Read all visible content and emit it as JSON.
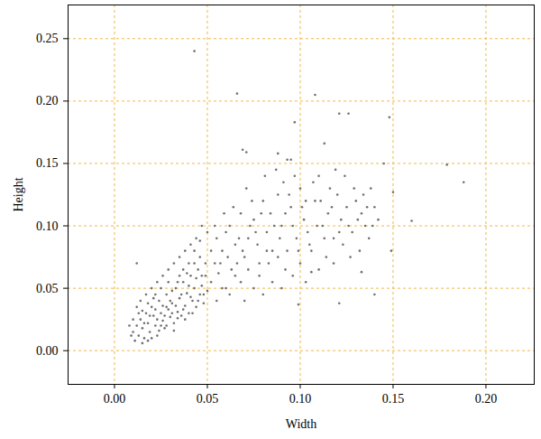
{
  "chart_data": {
    "type": "scatter",
    "x_label": "Width",
    "y_label": "Height",
    "color": "#707070",
    "grid": true,
    "marker": "circle",
    "xlim": [
      -0.025,
      0.226
    ],
    "ylim": [
      -0.027,
      0.277
    ],
    "xticks": [
      {
        "value": 0,
        "label": "0.00"
      },
      0.05,
      {
        "value": 0.1,
        "label": "0.10"
      },
      0.15,
      {
        "value": 0.2,
        "label": "0.20"
      }
    ],
    "yticks": [
      {
        "value": 0,
        "label": "0.00"
      },
      0.05,
      {
        "value": 0.1,
        "label": "0.10"
      },
      0.15,
      {
        "value": 0.2,
        "label": "0.20"
      },
      0.25
    ],
    "x": [
      0.01,
      0.012,
      0.013,
      0.014,
      0.015,
      0.016,
      0.017,
      0.018,
      0.019,
      0.02,
      0.021,
      0.022,
      0.023,
      0.024,
      0.025,
      0.026,
      0.027,
      0.028,
      0.029,
      0.03,
      0.031,
      0.032,
      0.033,
      0.034,
      0.035,
      0.036,
      0.037,
      0.038,
      0.039,
      0.04,
      0.041,
      0.042,
      0.043,
      0.044,
      0.045,
      0.046,
      0.047,
      0.048,
      0.049,
      0.05,
      0.011,
      0.013,
      0.015,
      0.016,
      0.018,
      0.019,
      0.02,
      0.021,
      0.022,
      0.023,
      0.024,
      0.025,
      0.026,
      0.027,
      0.028,
      0.029,
      0.03,
      0.031,
      0.032,
      0.033,
      0.034,
      0.035,
      0.036,
      0.037,
      0.038,
      0.039,
      0.04,
      0.041,
      0.042,
      0.043,
      0.044,
      0.045,
      0.046,
      0.047,
      0.048,
      0.009,
      0.012,
      0.014,
      0.017,
      0.02,
      0.023,
      0.026,
      0.029,
      0.032,
      0.035,
      0.038,
      0.041,
      0.044,
      0.047,
      0.05,
      0.008,
      0.01,
      0.015,
      0.018,
      0.022,
      0.025,
      0.028,
      0.031,
      0.034,
      0.037,
      0.04,
      0.043,
      0.046,
      0.049,
      0.052,
      0.054,
      0.056,
      0.058,
      0.06,
      0.055,
      0.06,
      0.062,
      0.065,
      0.068,
      0.07,
      0.072,
      0.075,
      0.078,
      0.08,
      0.082,
      0.085,
      0.088,
      0.09,
      0.092,
      0.095,
      0.098,
      0.1,
      0.102,
      0.105,
      0.108,
      0.11,
      0.112,
      0.115,
      0.118,
      0.12,
      0.122,
      0.125,
      0.128,
      0.13,
      0.133,
      0.135,
      0.138,
      0.14,
      0.142,
      0.055,
      0.058,
      0.062,
      0.065,
      0.068,
      0.07,
      0.072,
      0.075,
      0.078,
      0.08,
      0.083,
      0.085,
      0.088,
      0.09,
      0.093,
      0.096,
      0.1,
      0.103,
      0.106,
      0.11,
      0.114,
      0.118,
      0.123,
      0.127,
      0.132,
      0.137,
      0.052,
      0.057,
      0.061,
      0.064,
      0.067,
      0.071,
      0.074,
      0.077,
      0.081,
      0.084,
      0.087,
      0.091,
      0.094,
      0.097,
      0.101,
      0.104,
      0.107,
      0.111,
      0.116,
      0.119,
      0.124,
      0.129,
      0.134,
      0.139,
      0.054,
      0.059,
      0.063,
      0.066,
      0.069,
      0.073,
      0.076,
      0.079,
      0.082,
      0.086,
      0.089,
      0.092,
      0.096,
      0.099,
      0.103,
      0.109,
      0.113,
      0.117,
      0.121,
      0.126,
      0.131,
      0.136,
      0.043,
      0.066,
      0.108,
      0.121,
      0.126,
      0.097,
      0.148,
      0.113,
      0.179,
      0.188,
      0.145,
      0.15,
      0.16,
      0.149,
      0.133,
      0.106,
      0.099,
      0.121,
      0.14,
      0.012,
      0.069,
      0.071,
      0.088,
      0.093,
      0.095
    ],
    "values": [
      0.015,
      0.02,
      0.012,
      0.025,
      0.018,
      0.01,
      0.03,
      0.022,
      0.015,
      0.035,
      0.028,
      0.02,
      0.012,
      0.04,
      0.03,
      0.024,
      0.018,
      0.045,
      0.033,
      0.027,
      0.038,
      0.022,
      0.05,
      0.031,
      0.042,
      0.028,
      0.055,
      0.036,
      0.046,
      0.03,
      0.06,
      0.04,
      0.05,
      0.035,
      0.065,
      0.045,
      0.052,
      0.038,
      0.07,
      0.048,
      0.008,
      0.03,
      0.006,
      0.022,
      0.008,
      0.028,
      0.01,
      0.042,
      0.033,
      0.025,
      0.016,
      0.05,
      0.036,
      0.028,
      0.02,
      0.055,
      0.04,
      0.03,
      0.016,
      0.036,
      0.026,
      0.06,
      0.045,
      0.033,
      0.025,
      0.062,
      0.052,
      0.043,
      0.03,
      0.07,
      0.058,
      0.04,
      0.075,
      0.06,
      0.045,
      0.012,
      0.035,
      0.04,
      0.045,
      0.05,
      0.055,
      0.06,
      0.065,
      0.07,
      0.075,
      0.08,
      0.085,
      0.09,
      0.1,
      0.095,
      0.02,
      0.025,
      0.032,
      0.038,
      0.045,
      0.02,
      0.035,
      0.048,
      0.055,
      0.065,
      0.07,
      0.08,
      0.088,
      0.06,
      0.055,
      0.07,
      0.062,
      0.08,
      0.05,
      0.09,
      0.095,
      0.1,
      0.085,
      0.11,
      0.075,
      0.09,
      0.105,
      0.07,
      0.12,
      0.095,
      0.08,
      0.125,
      0.1,
      0.065,
      0.115,
      0.09,
      0.13,
      0.105,
      0.085,
      0.12,
      0.14,
      0.1,
      0.11,
      0.09,
      0.125,
      0.105,
      0.115,
      0.095,
      0.12,
      0.11,
      0.1,
      0.13,
      0.115,
      0.105,
      0.04,
      0.05,
      0.045,
      0.06,
      0.055,
      0.04,
      0.065,
      0.05,
      0.06,
      0.045,
      0.07,
      0.055,
      0.075,
      0.05,
      0.08,
      0.06,
      0.07,
      0.055,
      0.08,
      0.065,
      0.075,
      0.07,
      0.085,
      0.075,
      0.08,
      0.09,
      0.08,
      0.07,
      0.075,
      0.115,
      0.09,
      0.13,
      0.12,
      0.085,
      0.14,
      0.11,
      0.145,
      0.135,
      0.125,
      0.14,
      0.115,
      0.095,
      0.135,
      0.12,
      0.13,
      0.145,
      0.14,
      0.13,
      0.125,
      0.1,
      0.1,
      0.11,
      0.065,
      0.07,
      0.08,
      0.1,
      0.095,
      0.11,
      0.08,
      0.1,
      0.09,
      0.11,
      0.1,
      0.08,
      0.12,
      0.1,
      0.09,
      0.115,
      0.095,
      0.1,
      0.105,
      0.115,
      0.24,
      0.206,
      0.205,
      0.19,
      0.19,
      0.183,
      0.187,
      0.166,
      0.149,
      0.135,
      0.15,
      0.127,
      0.104,
      0.08,
      0.063,
      0.063,
      0.037,
      0.038,
      0.045,
      0.07,
      0.161,
      0.159,
      0.158,
      0.153,
      0.153
    ]
  }
}
